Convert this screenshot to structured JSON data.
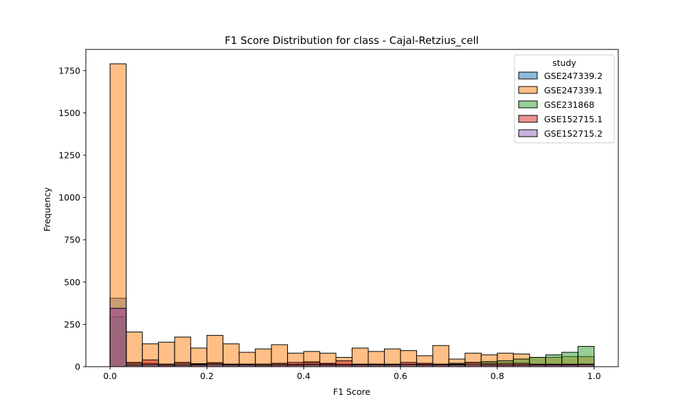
{
  "chart_data": {
    "type": "histogram",
    "title": "F1 Score Distribution for class - Cajal-Retzius_cell",
    "xlabel": "F1 Score",
    "ylabel": "Frequency",
    "xlim": [
      -0.05,
      1.05
    ],
    "ylim": [
      0,
      1875
    ],
    "xticks": [
      "0.0",
      "0.2",
      "0.4",
      "0.6",
      "0.8",
      "1.0"
    ],
    "xtick_values": [
      0,
      0.2,
      0.4,
      0.6,
      0.8,
      1.0
    ],
    "yticks": [
      "0",
      "250",
      "500",
      "750",
      "1000",
      "1250",
      "1500",
      "1750"
    ],
    "ytick_values": [
      0,
      250,
      500,
      750,
      1000,
      1250,
      1500,
      1750
    ],
    "grid": false,
    "legend_title": "study",
    "legend_position": "top-right",
    "bins": {
      "start": 0.0,
      "end": 1.0,
      "count": 30
    },
    "series": [
      {
        "name": "GSE247339.2",
        "color": "#1f77b4",
        "values": [
          405,
          10,
          14,
          8,
          10,
          12,
          25,
          14,
          12,
          8,
          12,
          14,
          30,
          18,
          15,
          12,
          15,
          10,
          14,
          12,
          10,
          12,
          25,
          12,
          10,
          12,
          12,
          12,
          14,
          15
        ]
      },
      {
        "name": "GSE247339.1",
        "color": "#ff7f0e",
        "values": [
          1790,
          205,
          135,
          145,
          175,
          110,
          185,
          135,
          85,
          105,
          130,
          80,
          90,
          80,
          55,
          110,
          90,
          105,
          95,
          65,
          125,
          45,
          80,
          70,
          80,
          75,
          55,
          55,
          60,
          60
        ]
      },
      {
        "name": "GSE231868",
        "color": "#2ca02c",
        "values": [
          295,
          20,
          20,
          15,
          20,
          18,
          20,
          15,
          15,
          15,
          18,
          15,
          15,
          15,
          15,
          15,
          15,
          15,
          15,
          15,
          15,
          20,
          25,
          30,
          35,
          45,
          55,
          70,
          85,
          120
        ]
      },
      {
        "name": "GSE152715.1",
        "color": "#d62728",
        "values": [
          345,
          25,
          40,
          15,
          25,
          15,
          20,
          15,
          15,
          15,
          20,
          25,
          25,
          20,
          35,
          15,
          15,
          15,
          25,
          20,
          15,
          15,
          25,
          20,
          20,
          20,
          15,
          15,
          15,
          15
        ]
      },
      {
        "name": "GSE152715.2",
        "color": "#9467bd",
        "values": [
          345,
          10,
          12,
          8,
          10,
          10,
          12,
          10,
          10,
          8,
          10,
          10,
          12,
          10,
          10,
          10,
          10,
          10,
          12,
          10,
          10,
          10,
          12,
          10,
          10,
          10,
          10,
          10,
          10,
          12
        ]
      }
    ]
  }
}
